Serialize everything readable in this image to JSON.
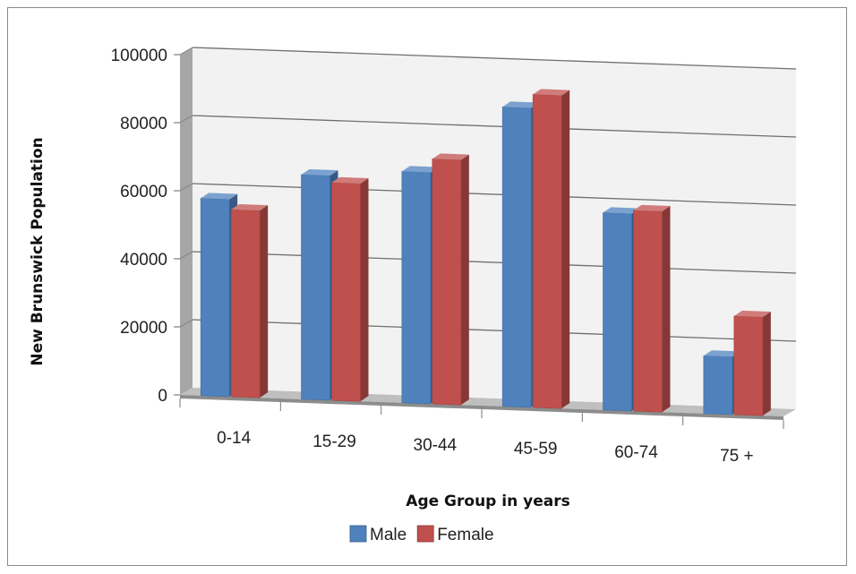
{
  "chart_data": {
    "type": "bar",
    "title": "",
    "xlabel": "Age Group in years",
    "ylabel": "New Brunswick Population",
    "categories": [
      "0-14",
      "15-29",
      "30-44",
      "45-59",
      "60-74",
      "75 +"
    ],
    "series": [
      {
        "name": "Male",
        "values": [
          58000,
          66000,
          68000,
          88000,
          58000,
          17000
        ],
        "color": "#4f81bd"
      },
      {
        "name": "Female",
        "values": [
          55000,
          64000,
          72000,
          92000,
          59000,
          29000
        ],
        "color": "#c0504d"
      }
    ],
    "ylim": [
      0,
      100000
    ],
    "yticks": [
      0,
      20000,
      40000,
      60000,
      80000,
      100000
    ],
    "grid": true,
    "legend": "bottom"
  }
}
